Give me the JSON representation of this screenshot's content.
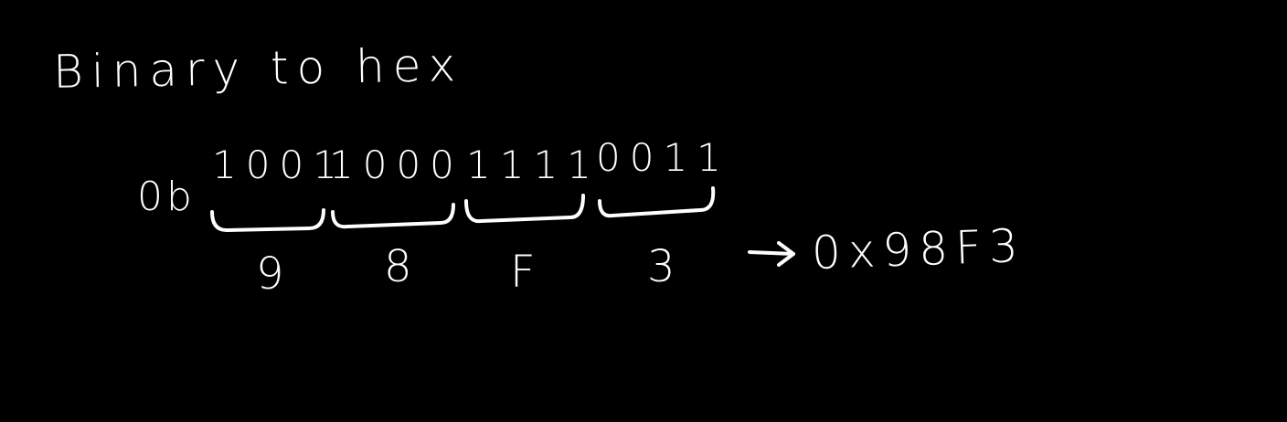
{
  "title": "Binary to hex",
  "binary": {
    "prefix": "0b",
    "nibbles": [
      {
        "bits": "1001",
        "hex": "9"
      },
      {
        "bits": "1000",
        "hex": "8"
      },
      {
        "bits": "1111",
        "hex": "F"
      },
      {
        "bits": "0011",
        "hex": "3"
      }
    ]
  },
  "result": "0x98F3",
  "colors": {
    "background": "#000000",
    "ink": "#ffffff"
  }
}
